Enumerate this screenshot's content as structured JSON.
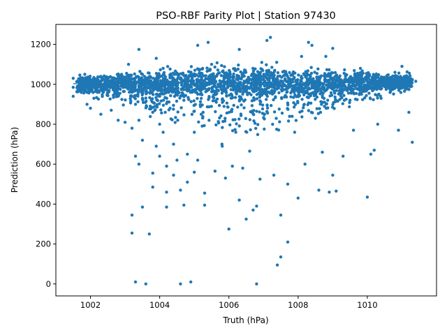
{
  "chart_data": {
    "type": "scatter",
    "title": "PSO-RBF Parity Plot | Station 97430",
    "xlabel": "Truth (hPa)",
    "ylabel": "Prediction (hPa)",
    "xlim": [
      1001.0,
      1012.0
    ],
    "ylim": [
      -60,
      1300
    ],
    "xticks": [
      1002,
      1004,
      1006,
      1008,
      1010
    ],
    "yticks": [
      0,
      200,
      400,
      600,
      800,
      1000,
      1200
    ],
    "grid": false,
    "legend": "none",
    "marker_color": "#1f77b4",
    "reference_line": {
      "style": "dashed",
      "color": "#1f77b4",
      "x": [
        1001.5,
        1011.3
      ],
      "y": [
        1003,
        1012
      ]
    },
    "series": [
      {
        "label_note": "",
        "points": [
          [
            1001.5,
            1030
          ],
          [
            1001.5,
            985
          ],
          [
            1001.5,
            940
          ],
          [
            1001.7,
            970
          ],
          [
            1001.8,
            1020
          ],
          [
            1001.8,
            975
          ],
          [
            1001.9,
            960
          ],
          [
            1001.9,
            900
          ],
          [
            1002.0,
            1015
          ],
          [
            1002.0,
            880
          ],
          [
            1002.1,
            930
          ],
          [
            1002.1,
            1010
          ],
          [
            1002.2,
            960
          ],
          [
            1002.3,
            1040
          ],
          [
            1002.3,
            850
          ],
          [
            1002.4,
            1000
          ],
          [
            1002.5,
            1030
          ],
          [
            1002.5,
            960
          ],
          [
            1002.6,
            870
          ],
          [
            1002.7,
            1000
          ],
          [
            1002.8,
            940
          ],
          [
            1002.8,
            820
          ],
          [
            1002.9,
            1050
          ],
          [
            1003.0,
            1000
          ],
          [
            1003.0,
            810
          ],
          [
            1003.1,
            1100
          ],
          [
            1003.2,
            960
          ],
          [
            1003.2,
            780
          ],
          [
            1003.2,
            345
          ],
          [
            1003.2,
            255
          ],
          [
            1003.3,
            1000
          ],
          [
            1003.3,
            900
          ],
          [
            1003.3,
            640
          ],
          [
            1003.3,
            10
          ],
          [
            1003.4,
            1175
          ],
          [
            1003.4,
            820
          ],
          [
            1003.4,
            600
          ],
          [
            1003.5,
            1050
          ],
          [
            1003.5,
            930
          ],
          [
            1003.5,
            720
          ],
          [
            1003.5,
            385
          ],
          [
            1003.6,
            0
          ],
          [
            1003.7,
            250
          ],
          [
            1003.8,
            860
          ],
          [
            1003.8,
            555
          ],
          [
            1003.8,
            485
          ],
          [
            1003.9,
            1130
          ],
          [
            1003.9,
            690
          ],
          [
            1004.0,
            950
          ],
          [
            1004.0,
            800
          ],
          [
            1004.0,
            640
          ],
          [
            1004.1,
            1080
          ],
          [
            1004.1,
            760
          ],
          [
            1004.2,
            590
          ],
          [
            1004.2,
            460
          ],
          [
            1004.2,
            385
          ],
          [
            1004.3,
            1000
          ],
          [
            1004.3,
            880
          ],
          [
            1004.4,
            700
          ],
          [
            1004.4,
            545
          ],
          [
            1004.5,
            1050
          ],
          [
            1004.5,
            620
          ],
          [
            1004.6,
            470
          ],
          [
            1004.6,
            0
          ],
          [
            1004.7,
            920
          ],
          [
            1004.7,
            395
          ],
          [
            1004.8,
            650
          ],
          [
            1004.8,
            510
          ],
          [
            1004.9,
            10
          ],
          [
            1005.0,
            760
          ],
          [
            1005.0,
            560
          ],
          [
            1005.1,
            1195
          ],
          [
            1005.1,
            620
          ],
          [
            1005.2,
            850
          ],
          [
            1005.3,
            455
          ],
          [
            1005.3,
            395
          ],
          [
            1005.4,
            1210
          ],
          [
            1005.5,
            1100
          ],
          [
            1005.6,
            565
          ],
          [
            1005.8,
            700
          ],
          [
            1005.9,
            530
          ],
          [
            1006.0,
            275
          ],
          [
            1006.1,
            590
          ],
          [
            1006.2,
            760
          ],
          [
            1006.3,
            1175
          ],
          [
            1006.3,
            420
          ],
          [
            1006.4,
            580
          ],
          [
            1006.5,
            325
          ],
          [
            1006.6,
            665
          ],
          [
            1006.7,
            370
          ],
          [
            1006.8,
            390
          ],
          [
            1006.8,
            0
          ],
          [
            1006.9,
            525
          ],
          [
            1007.1,
            1220
          ],
          [
            1007.2,
            1235
          ],
          [
            1007.3,
            545
          ],
          [
            1007.4,
            95
          ],
          [
            1007.5,
            345
          ],
          [
            1007.5,
            135
          ],
          [
            1007.7,
            500
          ],
          [
            1007.7,
            210
          ],
          [
            1007.9,
            760
          ],
          [
            1008.0,
            430
          ],
          [
            1008.1,
            1140
          ],
          [
            1008.2,
            600
          ],
          [
            1008.3,
            1210
          ],
          [
            1008.4,
            1195
          ],
          [
            1008.5,
            830
          ],
          [
            1008.6,
            470
          ],
          [
            1008.7,
            660
          ],
          [
            1008.8,
            1140
          ],
          [
            1008.9,
            460
          ],
          [
            1009.0,
            1180
          ],
          [
            1009.0,
            545
          ],
          [
            1009.1,
            465
          ],
          [
            1009.3,
            640
          ],
          [
            1009.5,
            920
          ],
          [
            1009.6,
            770
          ],
          [
            1009.8,
            1080
          ],
          [
            1010.0,
            435
          ],
          [
            1010.1,
            650
          ],
          [
            1010.2,
            670
          ],
          [
            1010.3,
            800
          ],
          [
            1010.4,
            930
          ],
          [
            1010.6,
            990
          ],
          [
            1010.8,
            1060
          ],
          [
            1010.9,
            770
          ],
          [
            1011.0,
            1090
          ],
          [
            1011.2,
            860
          ],
          [
            1011.3,
            710
          ],
          [
            1011.4,
            1015
          ],
          [
            1011.1,
            980
          ]
        ]
      }
    ]
  }
}
